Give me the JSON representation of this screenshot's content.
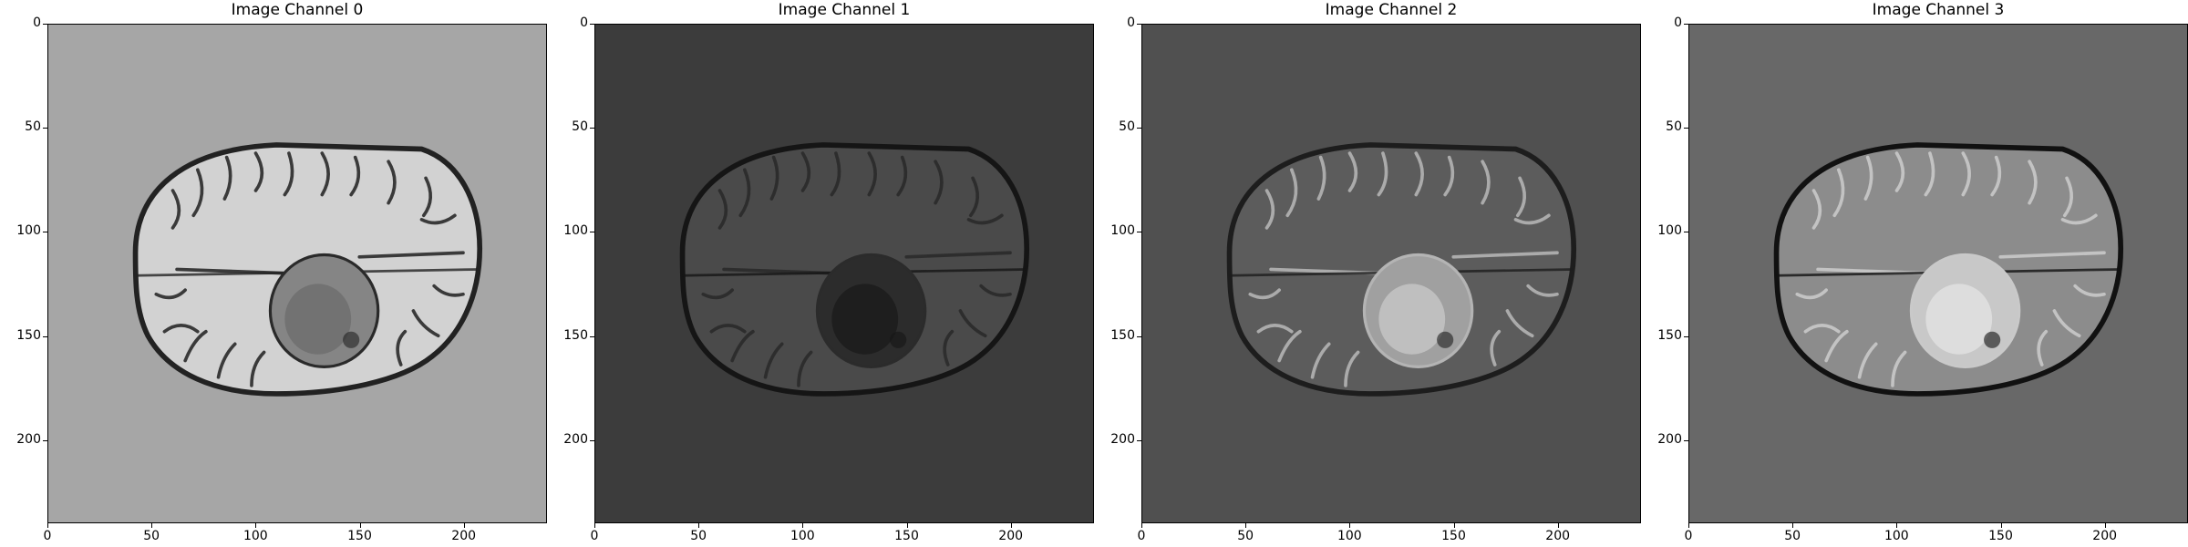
{
  "figure": {
    "panels": [
      {
        "title": "Image Channel 0",
        "background": "#a6a6a6",
        "tissue": "#d2d2d2",
        "sulci": "#2a2a2a",
        "rim": "#222222",
        "tumor": "#858585",
        "tumor_core": "#6e6e6e"
      },
      {
        "title": "Image Channel 1",
        "background": "#3c3c3c",
        "tissue": "#4a4a4a",
        "sulci": "#2b2b2b",
        "rim": "#151515",
        "tumor": "#2c2c2c",
        "tumor_core": "#1c1c1c"
      },
      {
        "title": "Image Channel 2",
        "background": "#505050",
        "tissue": "#5c5c5c",
        "sulci": "#b4b4b4",
        "rim": "#1d1d1d",
        "tumor": "#a0a0a0",
        "tumor_core": "#c4c4c4"
      },
      {
        "title": "Image Channel 3",
        "background": "#686868",
        "tissue": "#8c8c8c",
        "sulci": "#c9c9c9",
        "rim": "#111111",
        "tumor": "#c8c8c8",
        "tumor_core": "#e0e0e0"
      }
    ],
    "x_ticks": [
      0,
      50,
      100,
      150,
      200
    ],
    "y_ticks": [
      0,
      50,
      100,
      150,
      200
    ],
    "axis_range": [
      0,
      240
    ]
  }
}
